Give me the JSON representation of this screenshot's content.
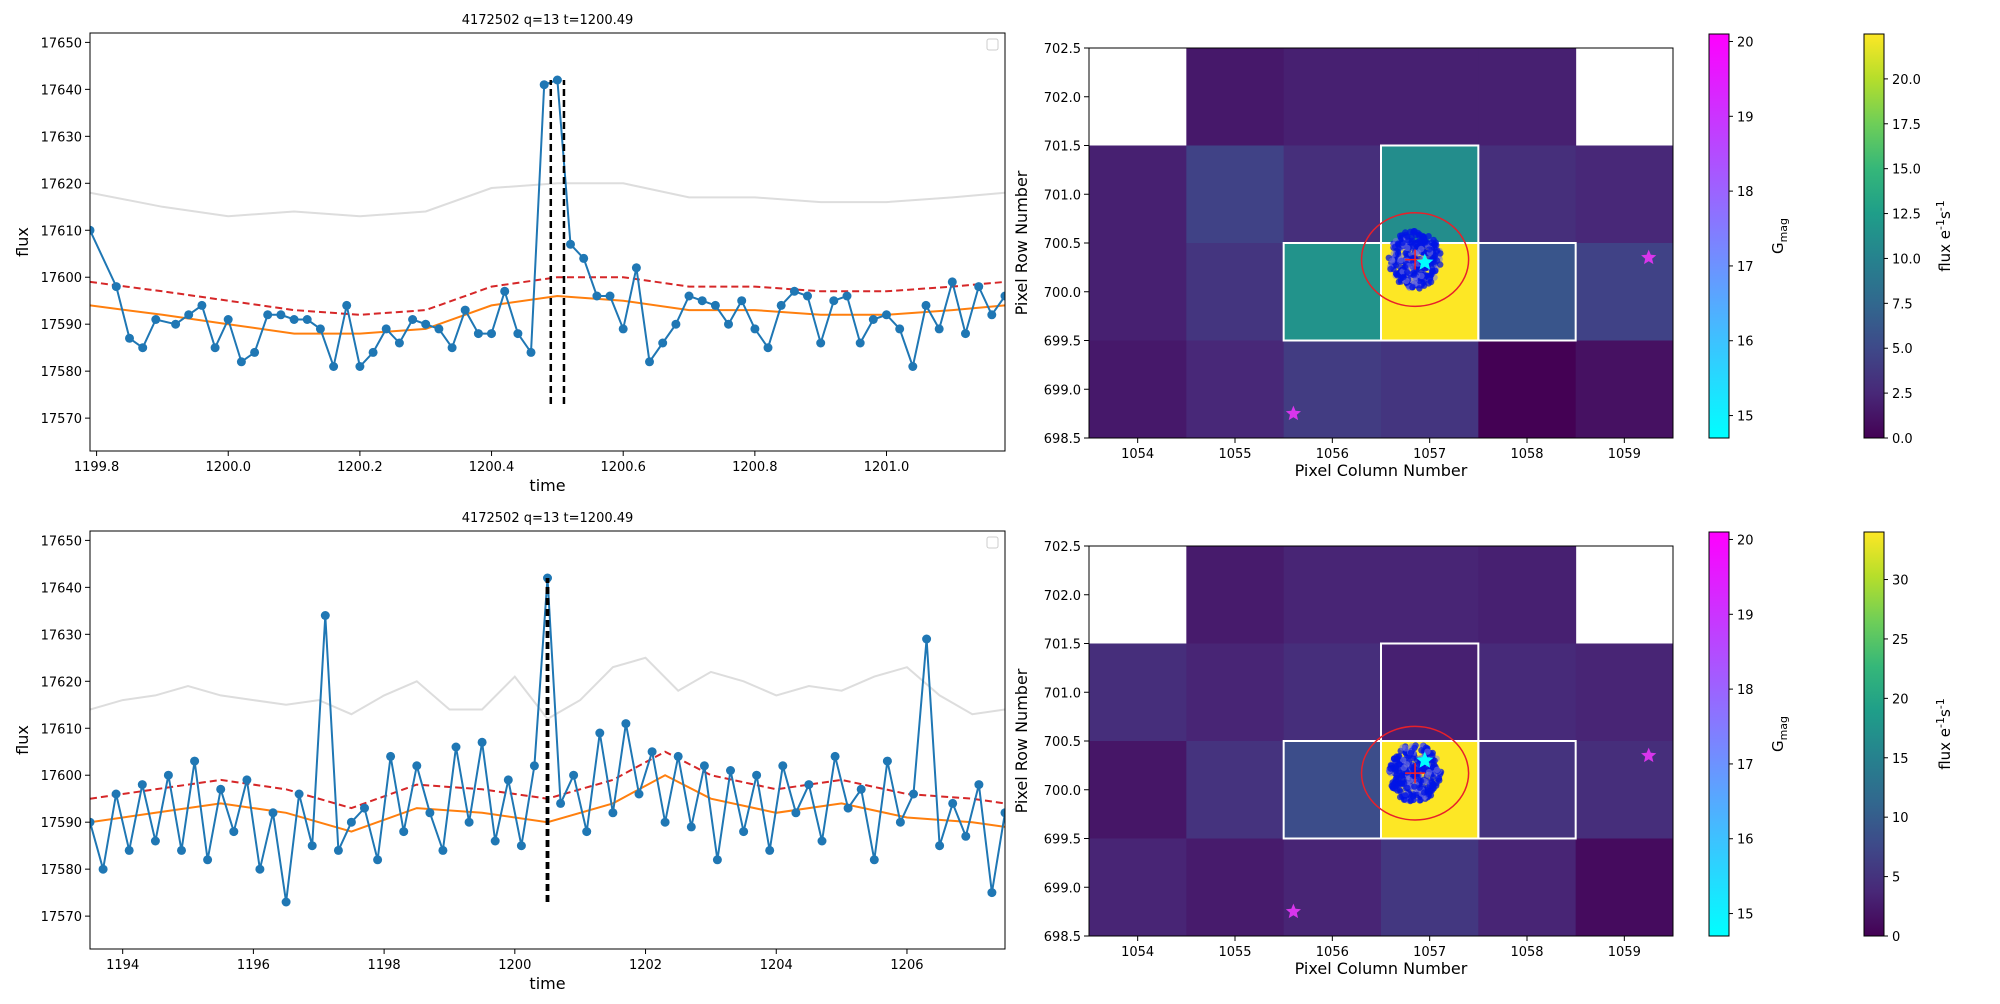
{
  "chart_data": [
    {
      "type": "line",
      "title": "4172502 q=13 t=1200.49",
      "xlabel": "time",
      "ylabel": "flux",
      "xlim": [
        1199.79,
        1201.18
      ],
      "ylim": [
        17563,
        17652
      ],
      "x_ticks": [
        "1199.8",
        "1200.0",
        "1200.2",
        "1200.4",
        "1200.6",
        "1200.8",
        "1201.0"
      ],
      "y_ticks": [
        "17570",
        "17580",
        "17590",
        "17600",
        "17610",
        "17620",
        "17630",
        "17640",
        "17650"
      ],
      "event_lines": [
        1200.49,
        1200.51
      ],
      "event_ymin": 17573,
      "legend": "top-right (empty)",
      "series": [
        {
          "kind": "data",
          "color": "#1f77b4",
          "x": [
            1199.79,
            1199.83,
            1199.85,
            1199.87,
            1199.89,
            1199.92,
            1199.94,
            1199.96,
            1199.98,
            1200.0,
            1200.02,
            1200.04,
            1200.06,
            1200.08,
            1200.1,
            1200.12,
            1200.14,
            1200.16,
            1200.18,
            1200.2,
            1200.22,
            1200.24,
            1200.26,
            1200.28,
            1200.3,
            1200.32,
            1200.34,
            1200.36,
            1200.38,
            1200.4,
            1200.42,
            1200.44,
            1200.46,
            1200.48,
            1200.5,
            1200.52,
            1200.54,
            1200.56,
            1200.58,
            1200.6,
            1200.62,
            1200.64,
            1200.66,
            1200.68,
            1200.7,
            1200.72,
            1200.74,
            1200.76,
            1200.78,
            1200.8,
            1200.82,
            1200.84,
            1200.86,
            1200.88,
            1200.9,
            1200.92,
            1200.94,
            1200.96,
            1200.98,
            1201.0,
            1201.02,
            1201.04,
            1201.06,
            1201.08,
            1201.1,
            1201.12,
            1201.14,
            1201.16,
            1201.18
          ],
          "y": [
            17610,
            17598,
            17587,
            17585,
            17591,
            17590,
            17592,
            17594,
            17585,
            17591,
            17582,
            17584,
            17592,
            17592,
            17591,
            17591,
            17589,
            17581,
            17594,
            17581,
            17584,
            17589,
            17586,
            17591,
            17590,
            17589,
            17585,
            17593,
            17588,
            17588,
            17597,
            17588,
            17584,
            17641,
            17642,
            17607,
            17604,
            17596,
            17596,
            17589,
            17602,
            17582,
            17586,
            17590,
            17596,
            17595,
            17594,
            17590,
            17595,
            17589,
            17585,
            17594,
            17597,
            17596,
            17586,
            17595,
            17596,
            17586,
            17591,
            17592,
            17589,
            17581,
            17594,
            17589,
            17599,
            17588,
            17598,
            17592,
            17596
          ]
        },
        {
          "kind": "upper",
          "color": "#d62728",
          "style": "dashed",
          "x": [
            1199.79,
            1199.9,
            1200.0,
            1200.1,
            1200.2,
            1200.3,
            1200.4,
            1200.5,
            1200.6,
            1200.7,
            1200.8,
            1200.9,
            1201.0,
            1201.1,
            1201.18
          ],
          "y": [
            17599,
            17597,
            17595,
            17593,
            17592,
            17593,
            17598,
            17600,
            17600,
            17598,
            17598,
            17597,
            17597,
            17598,
            17599
          ]
        },
        {
          "kind": "trend",
          "color": "#ff7f0e",
          "x": [
            1199.79,
            1199.9,
            1200.0,
            1200.1,
            1200.2,
            1200.3,
            1200.4,
            1200.5,
            1200.6,
            1200.7,
            1200.8,
            1200.9,
            1201.0,
            1201.1,
            1201.18
          ],
          "y": [
            17594,
            17592,
            17590,
            17588,
            17588,
            17589,
            17594,
            17596,
            17595,
            17593,
            17593,
            17592,
            17592,
            17593,
            17594
          ]
        },
        {
          "kind": "background",
          "color": "#dddddd",
          "x": [
            1199.79,
            1199.9,
            1200.0,
            1200.1,
            1200.2,
            1200.3,
            1200.4,
            1200.5,
            1200.6,
            1200.7,
            1200.8,
            1200.9,
            1201.0,
            1201.1,
            1201.18
          ],
          "y": [
            17618,
            17615,
            17613,
            17614,
            17613,
            17614,
            17619,
            17620,
            17620,
            17617,
            17617,
            17616,
            17616,
            17617,
            17618
          ]
        }
      ]
    },
    {
      "type": "heatmap",
      "xlabel": "Pixel Column Number",
      "ylabel": "Pixel Row Number",
      "xlim": [
        1053.5,
        1059.5
      ],
      "ylim": [
        698.5,
        702.5
      ],
      "x_ticks": [
        "1054",
        "1055",
        "1056",
        "1057",
        "1058",
        "1059"
      ],
      "y_ticks": [
        "698.5",
        "699.0",
        "699.5",
        "700.0",
        "700.5",
        "701.0",
        "701.5",
        "702.0",
        "702.5"
      ],
      "columns": [
        1054,
        1055,
        1056,
        1057,
        1058,
        1059
      ],
      "rows": [
        702,
        701,
        700,
        699
      ],
      "values": [
        [
          null,
          1.5,
          2.0,
          2.0,
          2.0,
          null
        ],
        [
          2.0,
          4.5,
          3.0,
          11.0,
          3.0,
          2.5
        ],
        [
          2.0,
          3.5,
          11.5,
          22.5,
          6.0,
          4.5
        ],
        [
          1.5,
          2.5,
          4.0,
          3.5,
          0.0,
          1.0
        ]
      ],
      "aperture_pixels": [
        [
          1057,
          701
        ],
        [
          1056,
          700
        ],
        [
          1057,
          700
        ],
        [
          1058,
          700
        ]
      ],
      "centroid": [
        1056.85,
        700.33
      ],
      "target_star": [
        1056.95,
        700.3
      ],
      "neighbor_stars": [
        [
          1059.25,
          700.35
        ],
        [
          1055.6,
          698.75
        ]
      ],
      "colorbar_gmag": {
        "label": "G_mag",
        "range": [
          14.7,
          20.1
        ],
        "ticks": [
          "15",
          "16",
          "17",
          "18",
          "19",
          "20"
        ]
      },
      "colorbar_flux": {
        "label": "flux e^-1 s^-1",
        "range": [
          0,
          22.5
        ],
        "ticks": [
          "0.0",
          "2.5",
          "5.0",
          "7.5",
          "10.0",
          "12.5",
          "15.0",
          "17.5",
          "20.0"
        ]
      }
    },
    {
      "type": "line",
      "title": "4172502 q=13 t=1200.49",
      "xlabel": "time",
      "ylabel": "flux",
      "xlim": [
        1193.5,
        1207.5
      ],
      "ylim": [
        17563,
        17652
      ],
      "x_ticks": [
        "1194",
        "1196",
        "1198",
        "1200",
        "1202",
        "1204",
        "1206"
      ],
      "y_ticks": [
        "17570",
        "17580",
        "17590",
        "17600",
        "17610",
        "17620",
        "17630",
        "17640",
        "17650"
      ],
      "event_lines": [
        1200.49,
        1200.51
      ],
      "event_ymin": 17573,
      "legend": "top-right (empty)",
      "series": [
        {
          "kind": "data",
          "color": "#1f77b4",
          "x": [
            1193.5,
            1193.7,
            1193.9,
            1194.1,
            1194.3,
            1194.5,
            1194.7,
            1194.9,
            1195.1,
            1195.3,
            1195.5,
            1195.7,
            1195.9,
            1196.1,
            1196.3,
            1196.5,
            1196.7,
            1196.9,
            1197.1,
            1197.3,
            1197.5,
            1197.7,
            1197.9,
            1198.1,
            1198.3,
            1198.5,
            1198.7,
            1198.9,
            1199.1,
            1199.3,
            1199.5,
            1199.7,
            1199.9,
            1200.1,
            1200.3,
            1200.5,
            1200.7,
            1200.9,
            1201.1,
            1201.3,
            1201.5,
            1201.7,
            1201.9,
            1202.1,
            1202.3,
            1202.5,
            1202.7,
            1202.9,
            1203.1,
            1203.3,
            1203.5,
            1203.7,
            1203.9,
            1204.1,
            1204.3,
            1204.5,
            1204.7,
            1204.9,
            1205.1,
            1205.3,
            1205.5,
            1205.7,
            1205.9,
            1206.1,
            1206.3,
            1206.5,
            1206.7,
            1206.9,
            1207.1,
            1207.3,
            1207.5
          ],
          "y": [
            17590,
            17580,
            17596,
            17584,
            17598,
            17586,
            17600,
            17584,
            17603,
            17582,
            17597,
            17588,
            17599,
            17580,
            17592,
            17573,
            17596,
            17585,
            17634,
            17584,
            17590,
            17593,
            17582,
            17604,
            17588,
            17602,
            17592,
            17584,
            17606,
            17590,
            17607,
            17586,
            17599,
            17585,
            17602,
            17642,
            17594,
            17600,
            17588,
            17609,
            17592,
            17611,
            17596,
            17605,
            17590,
            17604,
            17589,
            17602,
            17582,
            17601,
            17588,
            17600,
            17584,
            17602,
            17592,
            17598,
            17586,
            17604,
            17593,
            17597,
            17582,
            17603,
            17590,
            17596,
            17629,
            17585,
            17594,
            17587,
            17598,
            17575,
            17592
          ]
        },
        {
          "kind": "upper",
          "color": "#d62728",
          "style": "dashed",
          "x": [
            1193.5,
            1194.5,
            1195.5,
            1196.5,
            1197.5,
            1198.5,
            1199.5,
            1200.5,
            1201.5,
            1202.3,
            1203.0,
            1204.0,
            1205.0,
            1206.0,
            1207.0,
            1207.5
          ],
          "y": [
            17595,
            17597,
            17599,
            17597,
            17593,
            17598,
            17597,
            17595,
            17599,
            17605,
            17600,
            17597,
            17599,
            17596,
            17595,
            17594
          ]
        },
        {
          "kind": "trend",
          "color": "#ff7f0e",
          "x": [
            1193.5,
            1194.5,
            1195.5,
            1196.5,
            1197.5,
            1198.5,
            1199.5,
            1200.5,
            1201.5,
            1202.3,
            1203.0,
            1204.0,
            1205.0,
            1206.0,
            1207.0,
            1207.5
          ],
          "y": [
            17590,
            17592,
            17594,
            17592,
            17588,
            17593,
            17592,
            17590,
            17594,
            17600,
            17595,
            17592,
            17594,
            17591,
            17590,
            17589
          ]
        },
        {
          "kind": "background",
          "color": "#dddddd",
          "x": [
            1193.5,
            1194.0,
            1194.5,
            1195.0,
            1195.5,
            1196.0,
            1196.5,
            1197.0,
            1197.5,
            1198.0,
            1198.5,
            1199.0,
            1199.5,
            1200.0,
            1200.5,
            1201.0,
            1201.5,
            1202.0,
            1202.5,
            1203.0,
            1203.5,
            1204.0,
            1204.5,
            1205.0,
            1205.5,
            1206.0,
            1206.5,
            1207.0,
            1207.5
          ],
          "y": [
            17614,
            17616,
            17617,
            17619,
            17617,
            17616,
            17615,
            17616,
            17613,
            17617,
            17620,
            17614,
            17614,
            17621,
            17612,
            17616,
            17623,
            17625,
            17618,
            17622,
            17620,
            17617,
            17619,
            17618,
            17621,
            17623,
            17617,
            17613,
            17614
          ]
        }
      ]
    },
    {
      "type": "heatmap",
      "xlabel": "Pixel Column Number",
      "ylabel": "Pixel Row Number",
      "xlim": [
        1053.5,
        1059.5
      ],
      "ylim": [
        698.5,
        702.5
      ],
      "x_ticks": [
        "1054",
        "1055",
        "1056",
        "1057",
        "1058",
        "1059"
      ],
      "y_ticks": [
        "698.5",
        "699.0",
        "699.5",
        "700.0",
        "700.5",
        "701.0",
        "701.5",
        "702.0",
        "702.5"
      ],
      "columns": [
        1054,
        1055,
        1056,
        1057,
        1058,
        1059
      ],
      "rows": [
        702,
        701,
        700,
        699
      ],
      "values": [
        [
          null,
          2.5,
          3.5,
          3.5,
          3.0,
          null
        ],
        [
          4.5,
          3.5,
          4.5,
          3.0,
          4.0,
          3.5
        ],
        [
          2.0,
          5.0,
          8.0,
          34.0,
          5.0,
          4.5
        ],
        [
          3.5,
          2.5,
          3.5,
          5.5,
          3.5,
          1.0
        ]
      ],
      "aperture_pixels": [
        [
          1057,
          701
        ],
        [
          1056,
          700
        ],
        [
          1057,
          700
        ],
        [
          1058,
          700
        ]
      ],
      "centroid": [
        1056.85,
        700.17
      ],
      "target_star": [
        1056.95,
        700.3
      ],
      "neighbor_stars": [
        [
          1059.25,
          700.35
        ],
        [
          1055.6,
          698.75
        ]
      ],
      "colorbar_gmag": {
        "label": "G_mag",
        "range": [
          14.7,
          20.1
        ],
        "ticks": [
          "15",
          "16",
          "17",
          "18",
          "19",
          "20"
        ]
      },
      "colorbar_flux": {
        "label": "flux e^-1 s^-1",
        "range": [
          0,
          34
        ],
        "ticks": [
          "0",
          "5",
          "10",
          "15",
          "20",
          "25",
          "30"
        ]
      }
    }
  ]
}
